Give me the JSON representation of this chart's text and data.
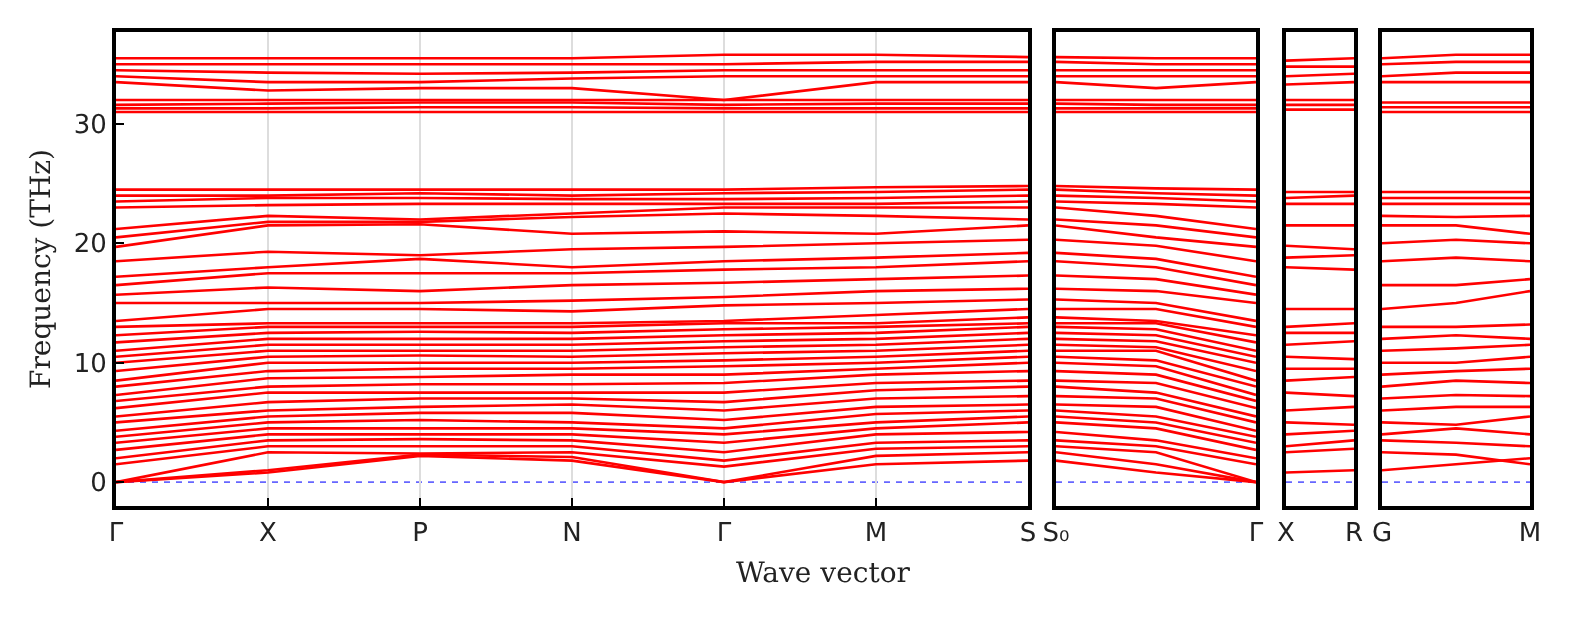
{
  "chart_data": [
    {
      "type": "line",
      "xlabel": "Wave vector",
      "ylabel": "Frequency (THz)",
      "color": "#ff0000",
      "line_style": "solid",
      "marker": "none",
      "grid": "x",
      "categories": [
        "Γ",
        "X",
        "P",
        "N",
        "Γ",
        "M",
        "S"
      ],
      "ylim": [
        -2,
        37.7
      ],
      "yticks": [
        0,
        10,
        20,
        30
      ],
      "ref_lines": [
        {
          "axis": "y",
          "value": 0,
          "color": "#6666ff",
          "line_style": "dotted"
        }
      ],
      "series": [
        {
          "values": [
            0,
            0.8,
            2.2,
            1.8,
            0,
            1.5,
            1.8
          ]
        },
        {
          "values": [
            0,
            1,
            2.3,
            2.1,
            0,
            2.2,
            2.5
          ]
        },
        {
          "values": [
            0,
            2.5,
            2.4,
            2.5,
            1.3,
            2.8,
            3
          ]
        },
        {
          "values": [
            1.5,
            3,
            3,
            3,
            1.8,
            3.3,
            3.5
          ]
        },
        {
          "values": [
            2,
            3.5,
            3.6,
            3.5,
            2.5,
            4,
            4.2
          ]
        },
        {
          "values": [
            2.7,
            4,
            4,
            4,
            3.3,
            4.5,
            5
          ]
        },
        {
          "values": [
            3.3,
            4.5,
            4.5,
            4.5,
            4,
            5,
            5.5
          ]
        },
        {
          "values": [
            3.8,
            5,
            5.2,
            5,
            4.5,
            5.7,
            6
          ]
        },
        {
          "values": [
            4.3,
            5.5,
            5.8,
            5.8,
            5.2,
            6.3,
            6.5
          ]
        },
        {
          "values": [
            5,
            6,
            6.3,
            6.5,
            6,
            7,
            7.2
          ]
        },
        {
          "values": [
            5.5,
            6.7,
            7,
            7,
            6.7,
            7.7,
            8
          ]
        },
        {
          "values": [
            6.2,
            7.5,
            7.5,
            7.5,
            7.5,
            8.3,
            8.5
          ]
        },
        {
          "values": [
            6.8,
            8,
            8.2,
            8.2,
            8.3,
            9,
            9.3
          ]
        },
        {
          "values": [
            7.3,
            8.7,
            8.8,
            9,
            9,
            9.5,
            10
          ]
        },
        {
          "values": [
            8,
            9.3,
            9.5,
            9.5,
            9.7,
            10,
            10.5
          ]
        },
        {
          "values": [
            8.5,
            10,
            10,
            10,
            10.2,
            10.5,
            11
          ]
        },
        {
          "values": [
            9.3,
            10.5,
            10.6,
            10.5,
            10.8,
            11,
            11.5
          ]
        },
        {
          "values": [
            10,
            11,
            11,
            11,
            11.3,
            11.5,
            12
          ]
        },
        {
          "values": [
            10.5,
            11.5,
            11.5,
            11.5,
            11.8,
            12,
            12.5
          ]
        },
        {
          "values": [
            11,
            12,
            12,
            12,
            12.3,
            12.5,
            13
          ]
        },
        {
          "values": [
            11.7,
            12.5,
            12.6,
            12.5,
            12.8,
            13,
            13.3
          ]
        },
        {
          "values": [
            12.3,
            13,
            13,
            13,
            13.3,
            13.3,
            13.8
          ]
        },
        {
          "values": [
            13,
            13.3,
            13.3,
            13.3,
            13.5,
            14,
            14.5
          ]
        },
        {
          "values": [
            13.5,
            14.5,
            14.5,
            14.3,
            14.8,
            15,
            15.3
          ]
        },
        {
          "values": [
            15,
            15,
            15,
            15.2,
            15.5,
            16,
            16.2
          ]
        },
        {
          "values": [
            15.7,
            16.3,
            16,
            16.5,
            16.7,
            17,
            17.3
          ]
        },
        {
          "values": [
            16.5,
            17.5,
            17.5,
            17.5,
            17.8,
            18,
            18.5
          ]
        },
        {
          "values": [
            17.2,
            18,
            18.7,
            18,
            18.5,
            18.8,
            19.2
          ]
        },
        {
          "values": [
            18.5,
            19.3,
            19,
            19.5,
            19.7,
            20,
            20.3
          ]
        },
        {
          "values": [
            19.7,
            21.5,
            21.6,
            20.8,
            21,
            20.8,
            21.5
          ]
        },
        {
          "values": [
            20.5,
            21.8,
            21.8,
            22.2,
            22.5,
            22.3,
            22
          ]
        },
        {
          "values": [
            21.2,
            22.3,
            22,
            22.5,
            23,
            23,
            23
          ]
        },
        {
          "values": [
            23,
            23.2,
            23.3,
            23.3,
            23.3,
            23.3,
            23.5
          ]
        },
        {
          "values": [
            23.5,
            23.8,
            23.8,
            23.7,
            23.7,
            23.8,
            24
          ]
        },
        {
          "values": [
            24,
            24,
            24.2,
            24,
            24.2,
            24.3,
            24.5
          ]
        },
        {
          "values": [
            24.5,
            24.5,
            24.5,
            24.5,
            24.5,
            24.7,
            24.8
          ]
        },
        {
          "values": [
            31,
            31,
            31,
            31,
            31,
            31,
            31
          ]
        },
        {
          "values": [
            31.3,
            31.3,
            31.4,
            31.4,
            31.3,
            31.3,
            31.3
          ]
        },
        {
          "values": [
            31.6,
            31.7,
            31.8,
            31.8,
            31.6,
            31.7,
            31.7
          ]
        },
        {
          "values": [
            32,
            32,
            32,
            32,
            32,
            32,
            32
          ]
        },
        {
          "values": [
            33.5,
            32.8,
            33,
            33,
            32,
            33.5,
            33.5
          ]
        },
        {
          "values": [
            34,
            33.5,
            33.5,
            33.8,
            34,
            34,
            34
          ]
        },
        {
          "values": [
            34.5,
            34.3,
            34.2,
            34.3,
            34.5,
            34.5,
            34.5
          ]
        },
        {
          "values": [
            35,
            35,
            35,
            35,
            35,
            35.2,
            35.2
          ]
        },
        {
          "values": [
            35.5,
            35.5,
            35.5,
            35.5,
            35.8,
            35.8,
            35.6
          ]
        }
      ]
    },
    {
      "type": "line",
      "color": "#ff0000",
      "line_style": "solid",
      "marker": "none",
      "tick_labels": "x",
      "categories": [
        "S₀",
        null,
        "Γ"
      ],
      "ylim": [
        -2,
        37.7
      ],
      "yticks": [
        0,
        10,
        20,
        30
      ],
      "ref_lines": [
        {
          "axis": "y",
          "value": 0,
          "color": "#6666ff",
          "line_style": "dotted"
        }
      ],
      "series": [
        {
          "values": [
            1.8,
            0.8,
            0
          ]
        },
        {
          "values": [
            2.5,
            1.5,
            0
          ]
        },
        {
          "values": [
            3,
            2.5,
            0
          ]
        },
        {
          "values": [
            3.5,
            3,
            1.5
          ]
        },
        {
          "values": [
            4.2,
            3.5,
            2
          ]
        },
        {
          "values": [
            5,
            4.5,
            2.7
          ]
        },
        {
          "values": [
            5.5,
            5,
            3.3
          ]
        },
        {
          "values": [
            6,
            5.5,
            3.8
          ]
        },
        {
          "values": [
            6.5,
            6.3,
            4.3
          ]
        },
        {
          "values": [
            7.2,
            7,
            5
          ]
        },
        {
          "values": [
            8,
            7.5,
            5.5
          ]
        },
        {
          "values": [
            8.5,
            8.3,
            6.2
          ]
        },
        {
          "values": [
            9.3,
            9,
            6.8
          ]
        },
        {
          "values": [
            10,
            9.7,
            7.3
          ]
        },
        {
          "values": [
            10.5,
            10.2,
            8
          ]
        },
        {
          "values": [
            11,
            11,
            8.5
          ]
        },
        {
          "values": [
            11.5,
            11.3,
            9.3
          ]
        },
        {
          "values": [
            12,
            11.8,
            10
          ]
        },
        {
          "values": [
            12.5,
            12.3,
            10.5
          ]
        },
        {
          "values": [
            13,
            12.8,
            11
          ]
        },
        {
          "values": [
            13.3,
            13.3,
            11.7
          ]
        },
        {
          "values": [
            13.8,
            13.5,
            12.3
          ]
        },
        {
          "values": [
            14.5,
            14.5,
            13
          ]
        },
        {
          "values": [
            15.3,
            15,
            13.5
          ]
        },
        {
          "values": [
            16.2,
            16,
            15
          ]
        },
        {
          "values": [
            17.3,
            17,
            15.7
          ]
        },
        {
          "values": [
            18.5,
            18,
            16.5
          ]
        },
        {
          "values": [
            19.2,
            18.7,
            17.2
          ]
        },
        {
          "values": [
            20.3,
            19.8,
            18.5
          ]
        },
        {
          "values": [
            21.5,
            20.5,
            19.7
          ]
        },
        {
          "values": [
            22,
            21.5,
            20.5
          ]
        },
        {
          "values": [
            23,
            22.3,
            21.2
          ]
        },
        {
          "values": [
            23.5,
            23.3,
            23
          ]
        },
        {
          "values": [
            24,
            23.8,
            23.5
          ]
        },
        {
          "values": [
            24.5,
            24.2,
            24
          ]
        },
        {
          "values": [
            24.8,
            24.6,
            24.5
          ]
        },
        {
          "values": [
            31,
            31,
            31
          ]
        },
        {
          "values": [
            31.3,
            31.3,
            31.3
          ]
        },
        {
          "values": [
            31.7,
            31.6,
            31.6
          ]
        },
        {
          "values": [
            32,
            32,
            32
          ]
        },
        {
          "values": [
            33.5,
            33,
            33.5
          ]
        },
        {
          "values": [
            34,
            34,
            34
          ]
        },
        {
          "values": [
            34.5,
            34.5,
            34.5
          ]
        },
        {
          "values": [
            35.2,
            35,
            35
          ]
        },
        {
          "values": [
            35.6,
            35.5,
            35.5
          ]
        }
      ]
    },
    {
      "type": "line",
      "color": "#ff0000",
      "line_style": "solid",
      "marker": "none",
      "tick_labels": "x",
      "categories": [
        "X",
        "R"
      ],
      "ylim": [
        -2,
        37.7
      ],
      "yticks": [
        0,
        10,
        20,
        30
      ],
      "ref_lines": [
        {
          "axis": "y",
          "value": 0,
          "color": "#6666ff",
          "line_style": "dotted"
        }
      ],
      "series": [
        {
          "values": [
            0.8,
            1
          ]
        },
        {
          "values": [
            2.5,
            2.8
          ]
        },
        {
          "values": [
            3,
            3.5
          ]
        },
        {
          "values": [
            4,
            4.3
          ]
        },
        {
          "values": [
            5,
            4.8
          ]
        },
        {
          "values": [
            6,
            6.3
          ]
        },
        {
          "values": [
            7.5,
            7.2
          ]
        },
        {
          "values": [
            8.5,
            8.8
          ]
        },
        {
          "values": [
            9.5,
            9.5
          ]
        },
        {
          "values": [
            10.5,
            10.3
          ]
        },
        {
          "values": [
            11.5,
            11.8
          ]
        },
        {
          "values": [
            12.5,
            12.5
          ]
        },
        {
          "values": [
            13,
            13.3
          ]
        },
        {
          "values": [
            14.5,
            14.5
          ]
        },
        {
          "values": [
            18,
            17.8
          ]
        },
        {
          "values": [
            18.8,
            19
          ]
        },
        {
          "values": [
            19.8,
            19.5
          ]
        },
        {
          "values": [
            21.5,
            21.5
          ]
        },
        {
          "values": [
            23.3,
            23.3
          ]
        },
        {
          "values": [
            23.8,
            24
          ]
        },
        {
          "values": [
            24.3,
            24.3
          ]
        },
        {
          "values": [
            31.2,
            31.2
          ]
        },
        {
          "values": [
            31.6,
            31.6
          ]
        },
        {
          "values": [
            32,
            32
          ]
        },
        {
          "values": [
            33.3,
            33.5
          ]
        },
        {
          "values": [
            34,
            34.2
          ]
        },
        {
          "values": [
            34.8,
            34.8
          ]
        },
        {
          "values": [
            35.3,
            35.5
          ]
        }
      ]
    },
    {
      "type": "line",
      "color": "#ff0000",
      "line_style": "solid",
      "marker": "none",
      "tick_labels": "x",
      "categories": [
        "G",
        null,
        "M"
      ],
      "ylim": [
        -2,
        37.7
      ],
      "yticks": [
        0,
        10,
        20,
        30
      ],
      "ref_lines": [
        {
          "axis": "y",
          "value": 0,
          "color": "#6666ff",
          "line_style": "dotted"
        }
      ],
      "series": [
        {
          "values": [
            1,
            1.5,
            2
          ]
        },
        {
          "values": [
            2.5,
            2.3,
            1.5
          ]
        },
        {
          "values": [
            3.5,
            3.3,
            3
          ]
        },
        {
          "values": [
            4,
            4.5,
            4
          ]
        },
        {
          "values": [
            5,
            4.8,
            5.5
          ]
        },
        {
          "values": [
            6,
            6.3,
            6.3
          ]
        },
        {
          "values": [
            7,
            7.3,
            7.2
          ]
        },
        {
          "values": [
            8,
            8.5,
            8.3
          ]
        },
        {
          "values": [
            9,
            9.3,
            9.5
          ]
        },
        {
          "values": [
            10,
            10,
            10.5
          ]
        },
        {
          "values": [
            11,
            11.2,
            11.5
          ]
        },
        {
          "values": [
            12,
            12.3,
            12
          ]
        },
        {
          "values": [
            13,
            13,
            13.2
          ]
        },
        {
          "values": [
            14.5,
            15,
            16
          ]
        },
        {
          "values": [
            16.5,
            16.5,
            17
          ]
        },
        {
          "values": [
            18.5,
            18.8,
            18.5
          ]
        },
        {
          "values": [
            20,
            20.3,
            20
          ]
        },
        {
          "values": [
            21.5,
            21.5,
            20.8
          ]
        },
        {
          "values": [
            22.3,
            22.2,
            22.3
          ]
        },
        {
          "values": [
            23.3,
            23.3,
            23.3
          ]
        },
        {
          "values": [
            23.8,
            23.8,
            23.8
          ]
        },
        {
          "values": [
            24.3,
            24.3,
            24.3
          ]
        },
        {
          "values": [
            31,
            31,
            31
          ]
        },
        {
          "values": [
            31.4,
            31.4,
            31.4
          ]
        },
        {
          "values": [
            31.8,
            31.8,
            31.8
          ]
        },
        {
          "values": [
            33.5,
            33.5,
            33.5
          ]
        },
        {
          "values": [
            34,
            34.3,
            34.3
          ]
        },
        {
          "values": [
            35,
            35.2,
            35.2
          ]
        },
        {
          "values": [
            35.5,
            35.8,
            35.8
          ]
        }
      ]
    }
  ]
}
